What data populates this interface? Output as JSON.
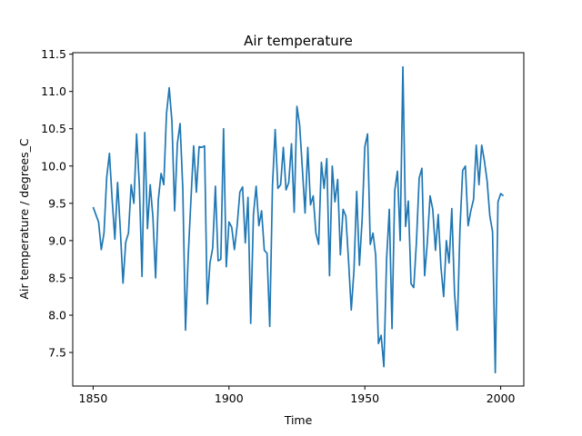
{
  "chart_data": {
    "type": "line",
    "title": "Air temperature",
    "xlabel": "Time",
    "ylabel": "Air temperature / degrees_C",
    "xlim": [
      1842.5,
      2008.5
    ],
    "ylim": [
      7.05,
      11.52
    ],
    "xticks": [
      1850,
      1900,
      1950,
      2000
    ],
    "xtick_labels": [
      "1850",
      "1900",
      "1950",
      "2000"
    ],
    "yticks": [
      7.5,
      8.0,
      8.5,
      9.0,
      9.5,
      10.0,
      10.5,
      11.0,
      11.5
    ],
    "ytick_labels": [
      "7.5",
      "8.0",
      "8.5",
      "9.0",
      "9.5",
      "10.0",
      "10.5",
      "11.0",
      "11.5"
    ],
    "grid": false,
    "line_color": "#1f77b4",
    "series": [
      {
        "x_start": 1850,
        "x_step": 1,
        "values": [
          9.45,
          9.35,
          9.25,
          8.88,
          9.1,
          9.85,
          10.17,
          9.55,
          9.02,
          9.78,
          9.15,
          8.43,
          8.98,
          9.1,
          9.75,
          9.5,
          10.43,
          9.75,
          8.52,
          10.45,
          9.16,
          9.75,
          9.32,
          8.5,
          9.55,
          9.9,
          9.75,
          10.7,
          11.05,
          10.6,
          9.4,
          10.3,
          10.57,
          9.7,
          7.8,
          8.8,
          9.55,
          10.27,
          9.65,
          10.26,
          10.25,
          10.27,
          8.15,
          8.7,
          8.9,
          9.73,
          8.73,
          8.75,
          10.5,
          8.65,
          9.25,
          9.18,
          8.88,
          9.2,
          9.65,
          9.72,
          8.97,
          9.58,
          7.89,
          9.35,
          9.73,
          9.2,
          9.4,
          8.87,
          8.83,
          7.85,
          9.73,
          10.49,
          9.7,
          9.75,
          10.25,
          9.68,
          9.78,
          10.3,
          9.38,
          10.8,
          10.55,
          9.97,
          9.37,
          10.25,
          9.48,
          9.6,
          9.1,
          8.95,
          10.05,
          9.7,
          10.1,
          8.53,
          10.0,
          9.52,
          9.82,
          8.81,
          9.42,
          9.33,
          8.73,
          8.07,
          8.6,
          9.66,
          8.67,
          9.28,
          10.26,
          10.43,
          8.95,
          9.1,
          8.8,
          7.62,
          7.73,
          7.31,
          8.75,
          9.42,
          7.82,
          9.67,
          9.93,
          9.0,
          11.33,
          9.19,
          9.53,
          8.42,
          8.37,
          8.99,
          9.84,
          9.97,
          8.53,
          8.98,
          9.6,
          9.42,
          8.87,
          9.35,
          8.65,
          8.25,
          9.0,
          8.7,
          9.43,
          8.3,
          7.8,
          9.15,
          9.94,
          10.0,
          9.2,
          9.4,
          9.55,
          10.28,
          9.75,
          10.28,
          10.07,
          9.8,
          9.33,
          9.12,
          7.23,
          9.52,
          9.63,
          9.6
        ]
      }
    ]
  }
}
